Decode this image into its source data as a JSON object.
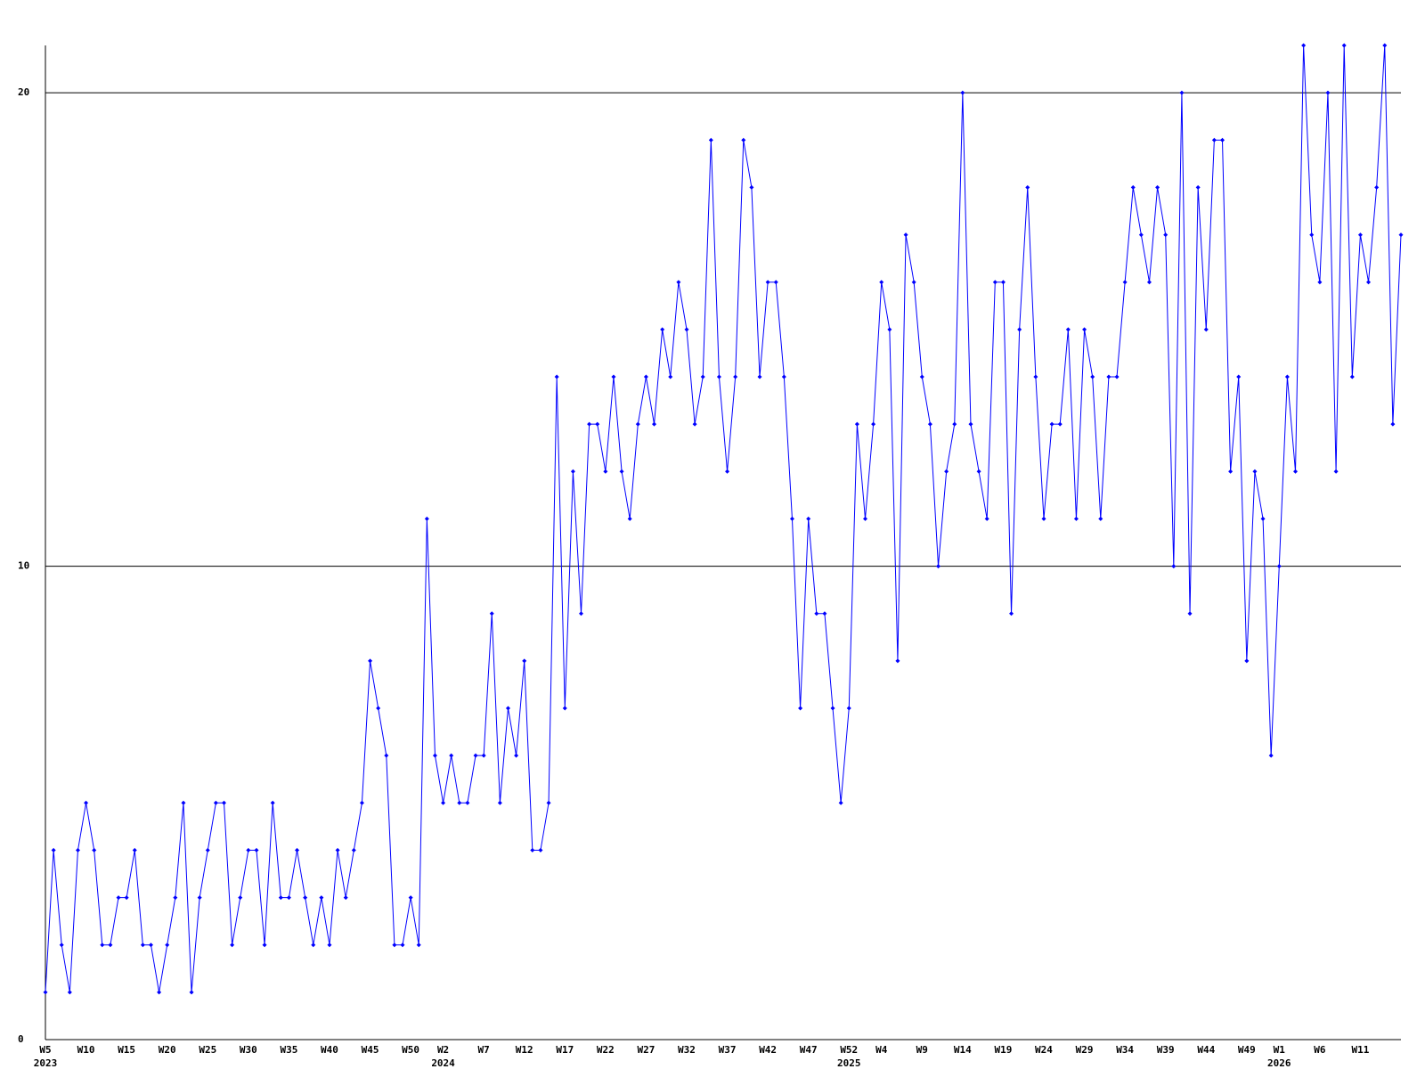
{
  "chart_data": {
    "type": "line",
    "ylim": [
      0,
      21
    ],
    "yticks": [
      0,
      10,
      20
    ],
    "grid": true,
    "categories": [
      [
        "W5",
        "2023"
      ],
      null,
      null,
      null,
      null,
      "W10",
      null,
      null,
      null,
      null,
      "W15",
      null,
      null,
      null,
      null,
      "W20",
      null,
      null,
      null,
      null,
      "W25",
      null,
      null,
      null,
      null,
      "W30",
      null,
      null,
      null,
      null,
      "W35",
      null,
      null,
      null,
      null,
      "W40",
      null,
      null,
      null,
      null,
      "W45",
      null,
      null,
      null,
      null,
      "W50",
      null,
      null,
      null,
      [
        "W2",
        "2024"
      ],
      null,
      null,
      null,
      null,
      "W7",
      null,
      null,
      null,
      null,
      "W12",
      null,
      null,
      null,
      null,
      "W17",
      null,
      null,
      null,
      null,
      "W22",
      null,
      null,
      null,
      null,
      "W27",
      null,
      null,
      null,
      null,
      "W32",
      null,
      null,
      null,
      null,
      "W37",
      null,
      null,
      null,
      null,
      "W42",
      null,
      null,
      null,
      null,
      "W47",
      null,
      null,
      null,
      null,
      [
        "W52",
        "2025"
      ],
      null,
      null,
      null,
      "W4",
      null,
      null,
      null,
      null,
      "W9",
      null,
      null,
      null,
      null,
      "W14",
      null,
      null,
      null,
      null,
      "W19",
      null,
      null,
      null,
      null,
      "W24",
      null,
      null,
      null,
      null,
      "W29",
      null,
      null,
      null,
      null,
      "W34",
      null,
      null,
      null,
      null,
      "W39",
      null,
      null,
      null,
      null,
      "W44",
      null,
      null,
      null,
      null,
      "W49",
      null,
      null,
      null,
      [
        "W1",
        "2026"
      ],
      null,
      null,
      null,
      null,
      "W6",
      null,
      null,
      null,
      null,
      "W11",
      null,
      null,
      null,
      null,
      null
    ],
    "series": [
      {
        "color": "#0000ff",
        "values": [
          1,
          4,
          2,
          1,
          4,
          5,
          4,
          2,
          2,
          3,
          3,
          4,
          2,
          2,
          1,
          2,
          3,
          5,
          1,
          3,
          4,
          5,
          5,
          2,
          3,
          4,
          4,
          2,
          5,
          3,
          3,
          4,
          3,
          2,
          3,
          2,
          4,
          3,
          4,
          5,
          8,
          7,
          6,
          2,
          2,
          3,
          2,
          11,
          6,
          5,
          6,
          5,
          5,
          6,
          6,
          9,
          5,
          7,
          6,
          8,
          4,
          4,
          5,
          14,
          7,
          12,
          9,
          13,
          13,
          12,
          14,
          12,
          11,
          13,
          14,
          13,
          15,
          14,
          16,
          15,
          13,
          14,
          19,
          14,
          12,
          14,
          19,
          18,
          14,
          16,
          16,
          14,
          11,
          7,
          11,
          9,
          9,
          7,
          5,
          7,
          13,
          11,
          13,
          16,
          15,
          8,
          17,
          16,
          14,
          13,
          10,
          12,
          13,
          20,
          13,
          12,
          11,
          16,
          16,
          9,
          15,
          18,
          14,
          11,
          13,
          13,
          15,
          11,
          15,
          14,
          11,
          14,
          14,
          16,
          18,
          17,
          16,
          18,
          17,
          10,
          20,
          9,
          18,
          15,
          19,
          19,
          12,
          14,
          8,
          12,
          11,
          6,
          10,
          14,
          12,
          21,
          17,
          16,
          20,
          12,
          21,
          14,
          17,
          16,
          18,
          21,
          13,
          17
        ]
      }
    ]
  }
}
